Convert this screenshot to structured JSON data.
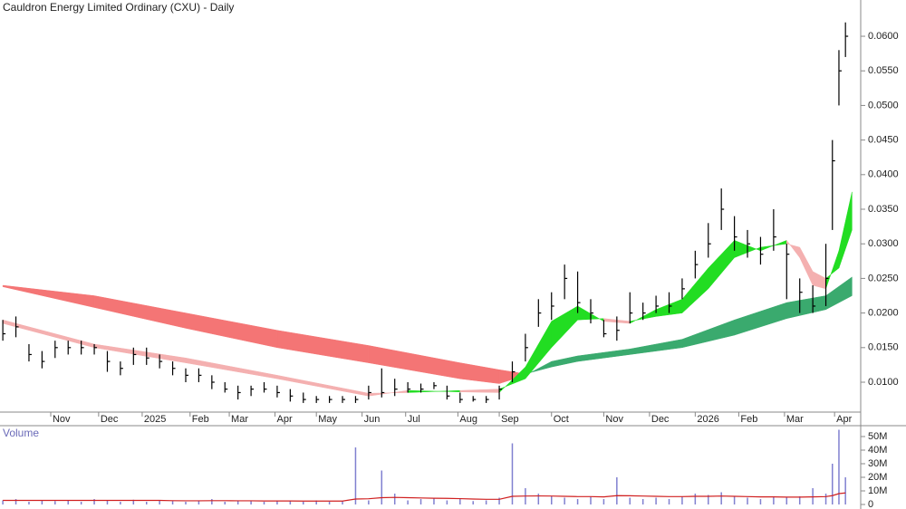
{
  "chart_data": [
    {
      "type": "ohlc",
      "title": "Cauldron Energy Limited Ordinary (CXU) - Daily",
      "bar_color": "#000000",
      "x": [
        -22,
        -16,
        -10,
        -4,
        2,
        8,
        14,
        20,
        26,
        32,
        38,
        44,
        50,
        56,
        62,
        68,
        74,
        80,
        86,
        92,
        98,
        104,
        110,
        116,
        122,
        128,
        134,
        140,
        146,
        152,
        158,
        164,
        170,
        176,
        182,
        188,
        194,
        200,
        206,
        212,
        218,
        224,
        230,
        236,
        242,
        248,
        254,
        260,
        266,
        272,
        278,
        284,
        290,
        296,
        302,
        308,
        314,
        320,
        326,
        332,
        338,
        344,
        350,
        356,
        359,
        362,
        365
      ],
      "high": [
        0.019,
        0.0195,
        0.0155,
        0.0145,
        0.016,
        0.016,
        0.016,
        0.0155,
        0.0145,
        0.013,
        0.015,
        0.015,
        0.014,
        0.013,
        0.012,
        0.012,
        0.011,
        0.01,
        0.0095,
        0.0095,
        0.01,
        0.0095,
        0.009,
        0.0085,
        0.008,
        0.008,
        0.008,
        0.008,
        0.0095,
        0.012,
        0.0105,
        0.01,
        0.0098,
        0.01,
        0.0095,
        0.0085,
        0.008,
        0.008,
        0.0095,
        0.013,
        0.017,
        0.022,
        0.023,
        0.027,
        0.026,
        0.022,
        0.019,
        0.0195,
        0.023,
        0.0215,
        0.0225,
        0.023,
        0.025,
        0.029,
        0.033,
        0.038,
        0.034,
        0.032,
        0.031,
        0.035,
        0.03,
        0.025,
        0.024,
        0.03,
        0.045,
        0.058,
        0.062
      ],
      "low": [
        0.016,
        0.0165,
        0.013,
        0.012,
        0.0135,
        0.014,
        0.014,
        0.014,
        0.0115,
        0.011,
        0.0125,
        0.0125,
        0.012,
        0.011,
        0.01,
        0.01,
        0.009,
        0.0085,
        0.0075,
        0.008,
        0.0085,
        0.0078,
        0.0072,
        0.007,
        0.007,
        0.007,
        0.007,
        0.007,
        0.0075,
        0.0078,
        0.008,
        0.0085,
        0.0085,
        0.009,
        0.0075,
        0.007,
        0.0072,
        0.007,
        0.0075,
        0.01,
        0.013,
        0.018,
        0.019,
        0.022,
        0.02,
        0.0185,
        0.0165,
        0.016,
        0.0185,
        0.019,
        0.02,
        0.02,
        0.022,
        0.025,
        0.028,
        0.032,
        0.029,
        0.028,
        0.027,
        0.029,
        0.022,
        0.02,
        0.02,
        0.021,
        0.032,
        0.05,
        0.057
      ],
      "close": [
        0.017,
        0.018,
        0.014,
        0.013,
        0.015,
        0.015,
        0.015,
        0.015,
        0.013,
        0.012,
        0.014,
        0.0135,
        0.013,
        0.012,
        0.011,
        0.011,
        0.01,
        0.009,
        0.0085,
        0.009,
        0.009,
        0.0085,
        0.008,
        0.0075,
        0.0075,
        0.0075,
        0.0075,
        0.0075,
        0.0085,
        0.0085,
        0.009,
        0.009,
        0.009,
        0.0095,
        0.008,
        0.0075,
        0.0075,
        0.0075,
        0.009,
        0.0115,
        0.015,
        0.02,
        0.021,
        0.025,
        0.0215,
        0.02,
        0.017,
        0.0175,
        0.02,
        0.02,
        0.021,
        0.021,
        0.0235,
        0.027,
        0.03,
        0.035,
        0.031,
        0.03,
        0.0285,
        0.031,
        0.0285,
        0.023,
        0.021,
        0.025,
        0.042,
        0.055,
        0.06
      ],
      "ribbons": [
        {
          "up_color": "#3aaa6e",
          "down_color": "#f47575",
          "x": [
            -22,
            20,
            62,
            104,
            146,
            188,
            206,
            218,
            230,
            242,
            266,
            290,
            314,
            338,
            356,
            368
          ],
          "fast": [
            0.0238,
            0.0208,
            0.0178,
            0.015,
            0.0128,
            0.0105,
            0.0098,
            0.011,
            0.013,
            0.0138,
            0.0148,
            0.0162,
            0.019,
            0.0215,
            0.0225,
            0.0252
          ],
          "slow": [
            0.024,
            0.0225,
            0.02,
            0.0175,
            0.0153,
            0.0128,
            0.0118,
            0.0112,
            0.0122,
            0.013,
            0.014,
            0.015,
            0.0168,
            0.0192,
            0.0205,
            0.0225
          ]
        },
        {
          "up_color": "#22dd22",
          "down_color": "#f4b0b0",
          "x": [
            -22,
            20,
            62,
            104,
            146,
            164,
            188,
            206,
            218,
            230,
            242,
            254,
            266,
            278,
            290,
            302,
            314,
            326,
            338,
            344,
            350,
            356,
            362,
            368
          ],
          "fast": [
            0.0185,
            0.015,
            0.0128,
            0.0105,
            0.008,
            0.0088,
            0.0086,
            0.0085,
            0.0122,
            0.0188,
            0.021,
            0.0188,
            0.0185,
            0.0205,
            0.022,
            0.0265,
            0.0305,
            0.029,
            0.0305,
            0.028,
            0.024,
            0.0235,
            0.029,
            0.0375
          ],
          "slow": [
            0.019,
            0.0155,
            0.0135,
            0.011,
            0.0084,
            0.0085,
            0.0088,
            0.009,
            0.0105,
            0.015,
            0.019,
            0.0192,
            0.0188,
            0.0195,
            0.02,
            0.0235,
            0.028,
            0.0295,
            0.03,
            0.0295,
            0.026,
            0.025,
            0.0265,
            0.032
          ]
        }
      ],
      "xlim": [
        -23.3,
        372
      ],
      "xticks": [
        {
          "value": 0,
          "label": "Nov"
        },
        {
          "value": 22,
          "label": "Dec"
        },
        {
          "value": 42,
          "label": "2025"
        },
        {
          "value": 64,
          "label": "Feb"
        },
        {
          "value": 82,
          "label": "Mar"
        },
        {
          "value": 103,
          "label": "Apr"
        },
        {
          "value": 122,
          "label": "May"
        },
        {
          "value": 143,
          "label": "Jun"
        },
        {
          "value": 163,
          "label": "Jul"
        },
        {
          "value": 187,
          "label": "Aug"
        },
        {
          "value": 206,
          "label": "Sep"
        },
        {
          "value": 230,
          "label": "Oct"
        },
        {
          "value": 254,
          "label": "Nov"
        },
        {
          "value": 275,
          "label": "Dec"
        },
        {
          "value": 296,
          "label": "2026"
        },
        {
          "value": 316,
          "label": "Feb"
        },
        {
          "value": 337,
          "label": "Mar"
        },
        {
          "value": 360,
          "label": "Apr"
        }
      ],
      "ylim": [
        0.00568,
        0.06524
      ],
      "yticks": [
        {
          "value": 0.01,
          "label": "0.0100"
        },
        {
          "value": 0.015,
          "label": "0.0150"
        },
        {
          "value": 0.02,
          "label": "0.0200"
        },
        {
          "value": 0.025,
          "label": "0.0250"
        },
        {
          "value": 0.03,
          "label": "0.0300"
        },
        {
          "value": 0.035,
          "label": "0.0350"
        },
        {
          "value": 0.04,
          "label": "0.0400"
        },
        {
          "value": 0.045,
          "label": "0.0450"
        },
        {
          "value": 0.05,
          "label": "0.0500"
        },
        {
          "value": 0.055,
          "label": "0.0550"
        },
        {
          "value": 0.06,
          "label": "0.0600"
        }
      ]
    },
    {
      "type": "bar",
      "title": "Volume",
      "color": "#8080d0",
      "avg_color": "#d02020",
      "values": [
        3000000,
        4000000,
        2000000,
        3000000,
        2500000,
        3000000,
        2000000,
        4000000,
        3000000,
        2000000,
        3500000,
        2000000,
        3000000,
        2500000,
        2000000,
        3000000,
        4000000,
        2000000,
        3000000,
        2500000,
        2000000,
        3000000,
        2500000,
        2000000,
        3000000,
        2000000,
        2500000,
        42000000,
        3000000,
        25000000,
        8000000,
        3000000,
        4000000,
        5000000,
        3000000,
        4000000,
        2500000,
        3000000,
        5000000,
        45000000,
        12000000,
        8000000,
        6000000,
        5000000,
        4000000,
        6000000,
        4000000,
        20000000,
        5000000,
        4000000,
        5000000,
        4000000,
        6000000,
        8000000,
        7000000,
        9000000,
        6000000,
        5000000,
        4000000,
        6000000,
        5000000,
        6000000,
        12000000,
        8000000,
        30000000,
        55000000,
        20000000
      ],
      "avg": [
        3000000,
        3000000,
        3000000,
        3000000,
        3000000,
        3000000,
        3000000,
        3000000,
        3000000,
        3000000,
        3000000,
        3000000,
        3000000,
        2800000,
        2700000,
        2700000,
        2800000,
        2800000,
        2700000,
        2700000,
        2600000,
        2600000,
        2600000,
        2500000,
        2500000,
        2500000,
        2500000,
        4000000,
        4200000,
        5000000,
        5200000,
        5000000,
        4800000,
        4600000,
        4500000,
        4300000,
        4000000,
        3800000,
        3800000,
        6000000,
        6200000,
        6300000,
        6200000,
        6000000,
        5800000,
        5800000,
        5600000,
        6500000,
        6400000,
        6200000,
        6000000,
        5800000,
        5800000,
        6000000,
        6000000,
        6200000,
        6000000,
        5800000,
        5600000,
        5600000,
        5400000,
        5400000,
        5600000,
        5800000,
        6500000,
        8000000,
        8500000
      ],
      "ylim": [
        0,
        52000000
      ],
      "yticks": [
        {
          "value": 0,
          "label": "0"
        },
        {
          "value": 10000000,
          "label": "10M"
        },
        {
          "value": 20000000,
          "label": "20M"
        },
        {
          "value": 30000000,
          "label": "30M"
        },
        {
          "value": 40000000,
          "label": "40M"
        },
        {
          "value": 50000000,
          "label": "50M"
        }
      ]
    }
  ]
}
